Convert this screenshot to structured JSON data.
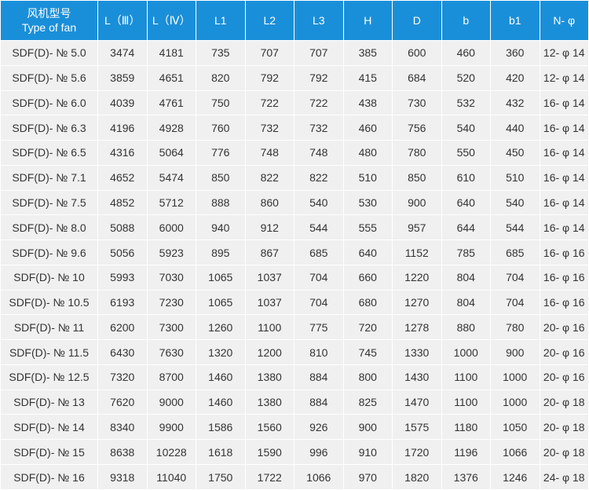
{
  "table": {
    "header": [
      [
        "风机型号",
        "Type of fan"
      ],
      "L（Ⅲ）",
      "L（Ⅳ）",
      "L1",
      "L2",
      "L3",
      "H",
      "D",
      "b",
      "b1",
      "N- φ"
    ],
    "rows": [
      [
        "SDF(D)- № 5.0",
        "3474",
        "4181",
        "735",
        "707",
        "707",
        "385",
        "600",
        "460",
        "360",
        "12- φ 14"
      ],
      [
        "SDF(D)- № 5.6",
        "3859",
        "4651",
        "820",
        "792",
        "792",
        "415",
        "684",
        "520",
        "420",
        "12- φ 14"
      ],
      [
        "SDF(D)- № 6.0",
        "4039",
        "4761",
        "750",
        "722",
        "722",
        "438",
        "730",
        "532",
        "432",
        "16- φ 14"
      ],
      [
        "SDF(D)- № 6.3",
        "4196",
        "4928",
        "760",
        "732",
        "732",
        "460",
        "756",
        "540",
        "440",
        "16- φ 14"
      ],
      [
        "SDF(D)- № 6.5",
        "4316",
        "5064",
        "776",
        "748",
        "748",
        "480",
        "780",
        "550",
        "450",
        "16- φ 14"
      ],
      [
        "SDF(D)- № 7.1",
        "4652",
        "5474",
        "850",
        "822",
        "822",
        "510",
        "850",
        "610",
        "510",
        "16- φ 14"
      ],
      [
        "SDF(D)- № 7.5",
        "4852",
        "5712",
        "888",
        "860",
        "540",
        "530",
        "900",
        "640",
        "540",
        "16- φ 14"
      ],
      [
        "SDF(D)- № 8.0",
        "5088",
        "6000",
        "940",
        "912",
        "544",
        "555",
        "957",
        "644",
        "544",
        "16- φ 14"
      ],
      [
        "SDF(D)- № 9.6",
        "5056",
        "5923",
        "895",
        "867",
        "685",
        "640",
        "1152",
        "785",
        "685",
        "16- φ 16"
      ],
      [
        "SDF(D)- № 10",
        "5993",
        "7030",
        "1065",
        "1037",
        "704",
        "660",
        "1220",
        "804",
        "704",
        "16- φ 16"
      ],
      [
        "SDF(D)- № 10.5",
        "6193",
        "7230",
        "1065",
        "1037",
        "704",
        "680",
        "1270",
        "804",
        "704",
        "16- φ 16"
      ],
      [
        "SDF(D)- № 11",
        "6200",
        "7300",
        "1260",
        "1100",
        "775",
        "720",
        "1278",
        "880",
        "780",
        "20- φ 16"
      ],
      [
        "SDF(D)- № 11.5",
        "6430",
        "7630",
        "1320",
        "1200",
        "810",
        "745",
        "1330",
        "1000",
        "900",
        "20- φ 16"
      ],
      [
        "SDF(D)- № 12.5",
        "7320",
        "8700",
        "1460",
        "1380",
        "884",
        "800",
        "1430",
        "1100",
        "1000",
        "20- φ 16"
      ],
      [
        "SDF(D)- № 13",
        "7620",
        "9000",
        "1460",
        "1380",
        "884",
        "825",
        "1470",
        "1100",
        "1000",
        "20- φ 18"
      ],
      [
        "SDF(D)- № 14",
        "8340",
        "9900",
        "1586",
        "1560",
        "926",
        "900",
        "1575",
        "1180",
        "1050",
        "20- φ 18"
      ],
      [
        "SDF(D)- № 15",
        "8638",
        "10228",
        "1618",
        "1590",
        "996",
        "910",
        "1720",
        "1196",
        "1066",
        "20- φ 18"
      ],
      [
        "SDF(D)- № 16",
        "9318",
        "11040",
        "1750",
        "1722",
        "1066",
        "970",
        "1820",
        "1376",
        "1246",
        "24- φ 18"
      ]
    ]
  }
}
